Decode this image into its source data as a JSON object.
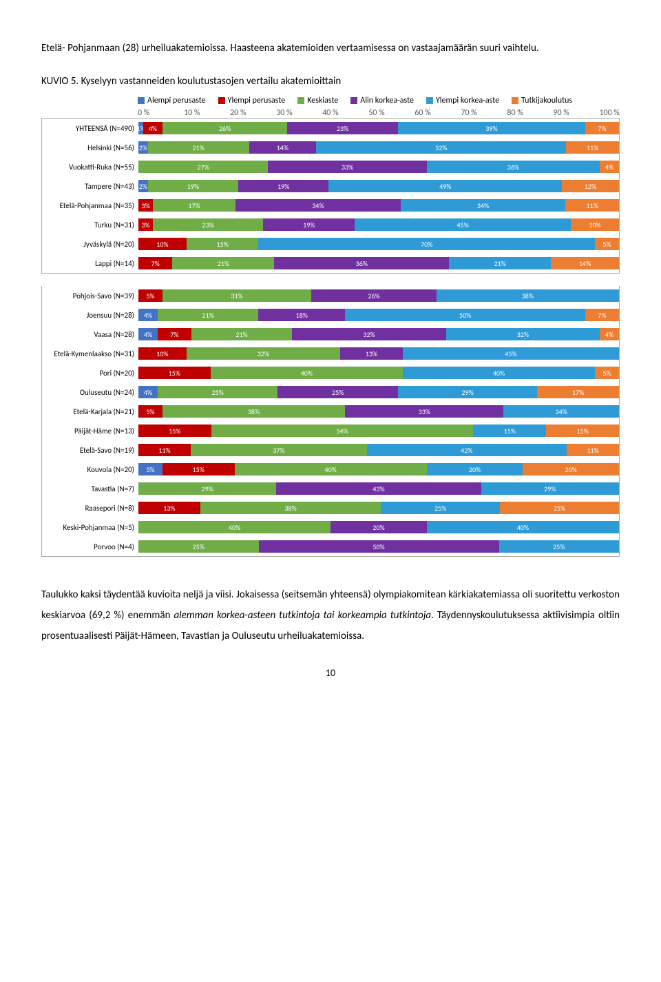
{
  "intro_text": "Etelä- Pohjanmaan (28) urheiluakatemioissa. Haasteena akatemioiden vertaamisessa on vastaajamäärän suuri vaihtelu.",
  "chart_title": "KUVIO 5. Kyselyyn vastanneiden koulutustasojen vertailu akatemioittain",
  "legend": [
    {
      "label": "Alempi perusaste",
      "color": "#4472c4"
    },
    {
      "label": "Ylempi perusaste",
      "color": "#c00000"
    },
    {
      "label": "Keskiaste",
      "color": "#70ad47"
    },
    {
      "label": "Alin korkea-aste",
      "color": "#7030a0"
    },
    {
      "label": "Ylempi korkea-aste",
      "color": "#2e9bd6"
    },
    {
      "label": "Tutkijakoulutus",
      "color": "#ed7d31"
    }
  ],
  "axis_ticks": [
    "0 %",
    "10 %",
    "20 %",
    "30 %",
    "40 %",
    "50 %",
    "60 %",
    "70 %",
    "80 %",
    "90 %",
    "100 %"
  ],
  "colors": [
    "#4472c4",
    "#c00000",
    "#70ad47",
    "#7030a0",
    "#2e9bd6",
    "#ed7d31"
  ],
  "groups": [
    [
      {
        "label": "YHTEENSÄ (N=490)",
        "segs": [
          {
            "v": 1,
            "t": "1%"
          },
          {
            "v": 4,
            "t": "4%"
          },
          {
            "v": 26,
            "t": "26%"
          },
          {
            "v": 23,
            "t": "23%"
          },
          {
            "v": 39,
            "t": "39%"
          },
          {
            "v": 7,
            "t": "7%"
          }
        ]
      },
      {
        "label": "Helsinki (N=56)",
        "segs": [
          {
            "v": 2,
            "t": "2%"
          },
          {
            "v": 0,
            "t": ""
          },
          {
            "v": 21,
            "t": "21%"
          },
          {
            "v": 14,
            "t": "14%"
          },
          {
            "v": 52,
            "t": "52%"
          },
          {
            "v": 11,
            "t": "11%"
          }
        ]
      },
      {
        "label": "Vuokatti-Ruka (N=55)",
        "segs": [
          {
            "v": 0,
            "t": ""
          },
          {
            "v": 0,
            "t": ""
          },
          {
            "v": 27,
            "t": "27%"
          },
          {
            "v": 33,
            "t": "33%"
          },
          {
            "v": 36,
            "t": "36%"
          },
          {
            "v": 4,
            "t": "4%"
          }
        ]
      },
      {
        "label": "Tampere (N=43)",
        "segs": [
          {
            "v": 2,
            "t": "2%"
          },
          {
            "v": 0,
            "t": ""
          },
          {
            "v": 19,
            "t": "19%"
          },
          {
            "v": 19,
            "t": "19%"
          },
          {
            "v": 49,
            "t": "49%"
          },
          {
            "v": 12,
            "t": "12%"
          }
        ]
      },
      {
        "label": "Etelä-Pohjanmaa (N=35)",
        "segs": [
          {
            "v": 0,
            "t": ""
          },
          {
            "v": 3,
            "t": "3%"
          },
          {
            "v": 17,
            "t": "17%"
          },
          {
            "v": 34,
            "t": "34%"
          },
          {
            "v": 34,
            "t": "34%"
          },
          {
            "v": 11,
            "t": "11%"
          }
        ]
      },
      {
        "label": "Turku (N=31)",
        "segs": [
          {
            "v": 0,
            "t": ""
          },
          {
            "v": 3,
            "t": "3%"
          },
          {
            "v": 23,
            "t": "23%"
          },
          {
            "v": 19,
            "t": "19%"
          },
          {
            "v": 45,
            "t": "45%"
          },
          {
            "v": 10,
            "t": "10%"
          }
        ]
      },
      {
        "label": "Jyväskylä (N=20)",
        "segs": [
          {
            "v": 0,
            "t": ""
          },
          {
            "v": 10,
            "t": "10%"
          },
          {
            "v": 15,
            "t": "15%"
          },
          {
            "v": 0,
            "t": ""
          },
          {
            "v": 70,
            "t": "70%"
          },
          {
            "v": 5,
            "t": "5%"
          }
        ]
      },
      {
        "label": "Lappi (N=14)",
        "segs": [
          {
            "v": 0,
            "t": ""
          },
          {
            "v": 7,
            "t": "7%"
          },
          {
            "v": 21,
            "t": "21%"
          },
          {
            "v": 36,
            "t": "36%"
          },
          {
            "v": 21,
            "t": "21%"
          },
          {
            "v": 14,
            "t": "14%"
          }
        ]
      }
    ],
    [
      {
        "label": "Pohjois-Savo (N=39)",
        "segs": [
          {
            "v": 0,
            "t": ""
          },
          {
            "v": 5,
            "t": "5%"
          },
          {
            "v": 31,
            "t": "31%"
          },
          {
            "v": 26,
            "t": "26%"
          },
          {
            "v": 38,
            "t": "38%"
          },
          {
            "v": 0,
            "t": ""
          }
        ]
      },
      {
        "label": "Joensuu (N=28)",
        "segs": [
          {
            "v": 4,
            "t": "4%"
          },
          {
            "v": 0,
            "t": ""
          },
          {
            "v": 21,
            "t": "21%"
          },
          {
            "v": 18,
            "t": "18%"
          },
          {
            "v": 50,
            "t": "50%"
          },
          {
            "v": 7,
            "t": "7%"
          }
        ]
      },
      {
        "label": "Vaasa (N=28)",
        "segs": [
          {
            "v": 4,
            "t": "4%"
          },
          {
            "v": 7,
            "t": "7%"
          },
          {
            "v": 21,
            "t": "21%"
          },
          {
            "v": 32,
            "t": "32%"
          },
          {
            "v": 32,
            "t": "32%"
          },
          {
            "v": 4,
            "t": "4%"
          }
        ]
      },
      {
        "label": "Etelä-Kymenlaakso (N=31)",
        "segs": [
          {
            "v": 0,
            "t": ""
          },
          {
            "v": 10,
            "t": "10%"
          },
          {
            "v": 32,
            "t": "32%"
          },
          {
            "v": 13,
            "t": "13%"
          },
          {
            "v": 45,
            "t": "45%"
          },
          {
            "v": 0,
            "t": ""
          }
        ]
      },
      {
        "label": "Pori (N=20)",
        "segs": [
          {
            "v": 0,
            "t": ""
          },
          {
            "v": 15,
            "t": "15%"
          },
          {
            "v": 40,
            "t": "40%"
          },
          {
            "v": 0,
            "t": ""
          },
          {
            "v": 40,
            "t": "40%"
          },
          {
            "v": 5,
            "t": "5%"
          }
        ]
      },
      {
        "label": "Ouluseutu (N=24)",
        "segs": [
          {
            "v": 4,
            "t": "4%"
          },
          {
            "v": 0,
            "t": ""
          },
          {
            "v": 25,
            "t": "25%"
          },
          {
            "v": 25,
            "t": "25%"
          },
          {
            "v": 29,
            "t": "29%"
          },
          {
            "v": 17,
            "t": "17%"
          }
        ]
      },
      {
        "label": "Etelä-Karjala (N=21)",
        "segs": [
          {
            "v": 0,
            "t": ""
          },
          {
            "v": 5,
            "t": "5%"
          },
          {
            "v": 38,
            "t": "38%"
          },
          {
            "v": 33,
            "t": "33%"
          },
          {
            "v": 24,
            "t": "24%"
          },
          {
            "v": 0,
            "t": ""
          }
        ]
      },
      {
        "label": "Päijät-Häme (N=13)",
        "segs": [
          {
            "v": 0,
            "t": ""
          },
          {
            "v": 15,
            "t": "15%"
          },
          {
            "v": 54,
            "t": "54%"
          },
          {
            "v": 0,
            "t": ""
          },
          {
            "v": 15,
            "t": "15%"
          },
          {
            "v": 15,
            "t": "15%"
          }
        ]
      },
      {
        "label": "Etelä-Savo (N=19)",
        "segs": [
          {
            "v": 0,
            "t": ""
          },
          {
            "v": 11,
            "t": "11%"
          },
          {
            "v": 37,
            "t": "37%"
          },
          {
            "v": 0,
            "t": ""
          },
          {
            "v": 42,
            "t": "42%"
          },
          {
            "v": 11,
            "t": "11%"
          }
        ]
      },
      {
        "label": "Kouvola (N=20)",
        "segs": [
          {
            "v": 5,
            "t": "5%"
          },
          {
            "v": 15,
            "t": "15%"
          },
          {
            "v": 40,
            "t": "40%"
          },
          {
            "v": 0,
            "t": ""
          },
          {
            "v": 20,
            "t": "20%"
          },
          {
            "v": 20,
            "t": "20%"
          }
        ]
      },
      {
        "label": "Tavastia (N=7)",
        "segs": [
          {
            "v": 0,
            "t": ""
          },
          {
            "v": 0,
            "t": ""
          },
          {
            "v": 29,
            "t": "29%"
          },
          {
            "v": 43,
            "t": "43%"
          },
          {
            "v": 29,
            "t": "29%"
          },
          {
            "v": 0,
            "t": ""
          }
        ]
      },
      {
        "label": "Raasepori (N=8)",
        "segs": [
          {
            "v": 0,
            "t": ""
          },
          {
            "v": 13,
            "t": "13%"
          },
          {
            "v": 38,
            "t": "38%"
          },
          {
            "v": 0,
            "t": ""
          },
          {
            "v": 25,
            "t": "25%"
          },
          {
            "v": 25,
            "t": "25%"
          }
        ]
      },
      {
        "label": "Keski-Pohjanmaa (N=5)",
        "segs": [
          {
            "v": 0,
            "t": ""
          },
          {
            "v": 0,
            "t": ""
          },
          {
            "v": 40,
            "t": "40%"
          },
          {
            "v": 20,
            "t": "20%"
          },
          {
            "v": 40,
            "t": "40%"
          },
          {
            "v": 0,
            "t": ""
          }
        ]
      },
      {
        "label": "Porvoo (N=4)",
        "segs": [
          {
            "v": 0,
            "t": ""
          },
          {
            "v": 0,
            "t": ""
          },
          {
            "v": 25,
            "t": "25%"
          },
          {
            "v": 50,
            "t": "50%"
          },
          {
            "v": 25,
            "t": "25%"
          },
          {
            "v": 0,
            "t": ""
          }
        ]
      }
    ]
  ],
  "outro_html": "Taulukko kaksi täydentää kuvioita neljä ja viisi. Jokaisessa (seitsemän yhteensä) olympiakomitean kärkiakatemiassa oli suoritettu verkoston keskiarvoa (69,2 %) enemmän <i>alemman korkea-asteen tutkintoja tai korkeampia tutkintoja</i>. Täydennyskoulutuksessa aktiivisimpia oltiin prosentuaalisesti Päijät-Hämeen, Tavastian ja Ouluseutu urheiluakatemioissa.",
  "page_number": "10"
}
